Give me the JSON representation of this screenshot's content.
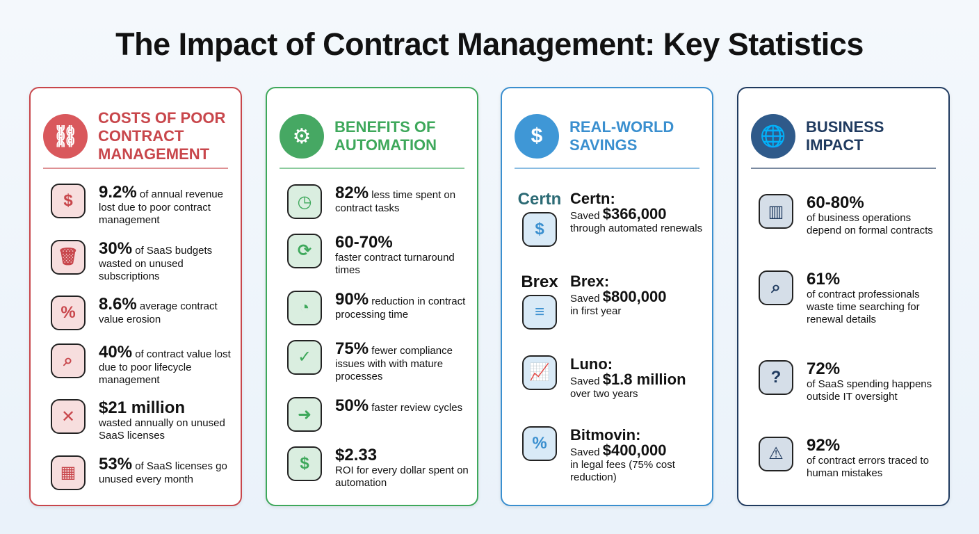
{
  "title": "The Impact of Contract Management: Key Statistics",
  "columns": [
    {
      "heading": [
        "Costs of Poor",
        "Contract",
        "Management"
      ],
      "color": "#c8464b",
      "icon_bg": "#d9585c",
      "header_icon": "broken-link-icon",
      "header_glyph": "⛓",
      "items": [
        {
          "icon": "dollar-down-icon",
          "glyph": "$",
          "stat": "9.2%",
          "text": "of annual revenue lost due to poor contract management"
        },
        {
          "icon": "trash-saas-icon",
          "glyph": "🗑",
          "stat": "30%",
          "text": "of SaaS budgets wasted on unused subscriptions"
        },
        {
          "icon": "broken-shield-icon",
          "glyph": "%",
          "stat": "8.6%",
          "text": "average contract value erosion"
        },
        {
          "icon": "document-search-icon",
          "glyph": "⌕",
          "stat": "40%",
          "text": "of contract value lost due to poor lifecycle management"
        },
        {
          "icon": "money-cancel-icon",
          "glyph": "✕",
          "stat": "$21 million",
          "block": true,
          "text": "wasted annually on unused SaaS licenses"
        },
        {
          "icon": "calendar-cancel-icon",
          "glyph": "▦",
          "stat": "53%",
          "text": "of SaaS licenses go unused every month"
        }
      ]
    },
    {
      "heading": [
        "Benefits of",
        "Automation"
      ],
      "color": "#3ea85b",
      "icon_bg": "#46a863",
      "header_icon": "gear-clock-icon",
      "header_glyph": "⚙",
      "items": [
        {
          "icon": "stopwatch-icon",
          "glyph": "◷",
          "stat": "82%",
          "text": "less time spent on contract tasks"
        },
        {
          "icon": "refresh-icon",
          "glyph": "⟳",
          "stat": "60-70%",
          "block": true,
          "text": "faster contract turnaround times"
        },
        {
          "icon": "stopwatch-icon",
          "glyph": "◔",
          "stat": "90%",
          "text": "reduction in contract processing time"
        },
        {
          "icon": "shield-check-icon",
          "glyph": "✓",
          "stat": "75%",
          "text": "fewer compliance issues with with mature processes"
        },
        {
          "icon": "document-arrow-icon",
          "glyph": "➜",
          "stat": "50%",
          "text": "faster review cycles"
        },
        {
          "icon": "money-exchange-icon",
          "glyph": "$",
          "stat": "$2.33",
          "block": true,
          "text": "ROI for every dollar spent on automation"
        }
      ]
    },
    {
      "heading": [
        "Real-World",
        "Savings"
      ],
      "color": "#3a8fcf",
      "icon_bg": "#3f97d6",
      "header_icon": "piggy-bank-icon",
      "header_glyph": "$",
      "items": [
        {
          "logo": "Certn",
          "logo_color": "#2b6a74",
          "icon": "money-bag-icon",
          "glyph": "$",
          "company": "Certn:",
          "saved": "Saved",
          "amount": "$366,000",
          "text": "through automated renewals"
        },
        {
          "logo": "Brex",
          "logo_color": "#111",
          "icon": "coins-icon",
          "glyph": "≡",
          "company": "Brex:",
          "saved": "Saved",
          "amount": "$800,000",
          "text": "in first year"
        },
        {
          "icon": "growth-chart-icon",
          "glyph": "📈",
          "company": "Luno:",
          "saved": "Saved",
          "amount": "$1.8 million",
          "text": "over two years"
        },
        {
          "icon": "percent-down-arrow-icon",
          "glyph": "%",
          "company": "Bitmovin:",
          "saved": "Saved",
          "amount": "$400,000",
          "text": "in legal fees (75% cost reduction)"
        }
      ]
    },
    {
      "heading": [
        "Business",
        "Impact"
      ],
      "color": "#1f3a5f",
      "icon_bg": "#2f5a8a",
      "header_icon": "globe-handshake-icon",
      "header_glyph": "🌐",
      "items": [
        {
          "icon": "office-building-icon",
          "glyph": "▥",
          "stat": "60-80%",
          "block": true,
          "text": "of business operations depend on formal contracts"
        },
        {
          "icon": "person-search-clock-icon",
          "glyph": "⌕",
          "stat": "61%",
          "block": true,
          "text": "of contract professionals waste time searching for renewal details"
        },
        {
          "icon": "cloud-it-question-icon",
          "glyph": "?",
          "stat": "72%",
          "block": true,
          "text": "of SaaS spending happens outside IT oversight"
        },
        {
          "icon": "head-warning-icon",
          "glyph": "⚠",
          "stat": "92%",
          "block": true,
          "text": "of contract errors traced to human mistakes"
        }
      ]
    }
  ]
}
